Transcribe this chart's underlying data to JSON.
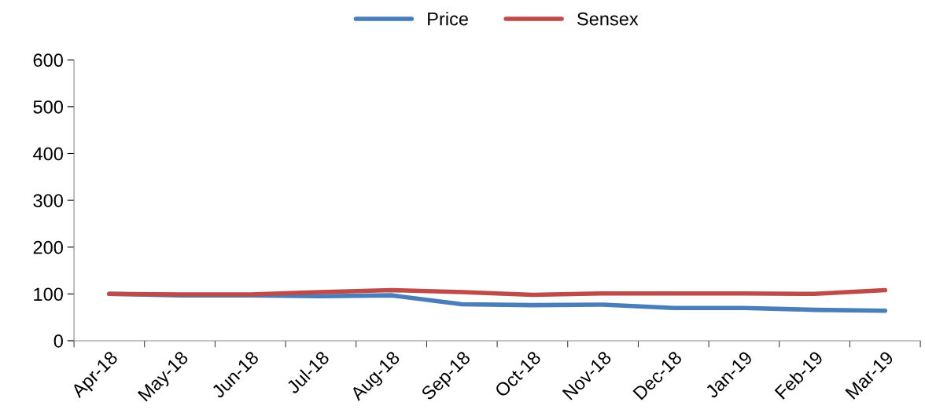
{
  "chart_data": {
    "type": "line",
    "categories": [
      "Apr-18",
      "May-18",
      "Jun-18",
      "Jul-18",
      "Aug-18",
      "Sep-18",
      "Oct-18",
      "Nov-18",
      "Dec-18",
      "Jan-19",
      "Feb-19",
      "Mar-19"
    ],
    "series": [
      {
        "name": "Price",
        "color": "#4a7ebb",
        "values": [
          100,
          97,
          97,
          95,
          97,
          78,
          76,
          77,
          70,
          70,
          66,
          64
        ]
      },
      {
        "name": "Sensex",
        "color": "#be4b48",
        "values": [
          100,
          99,
          99,
          104,
          108,
          104,
          98,
          101,
          101,
          101,
          100,
          108
        ]
      }
    ],
    "ylim": [
      0,
      600
    ],
    "yticks": [
      0,
      100,
      200,
      300,
      400,
      500,
      600
    ],
    "legend": "top",
    "grid": false,
    "marker": "none",
    "line_style": "solid"
  }
}
